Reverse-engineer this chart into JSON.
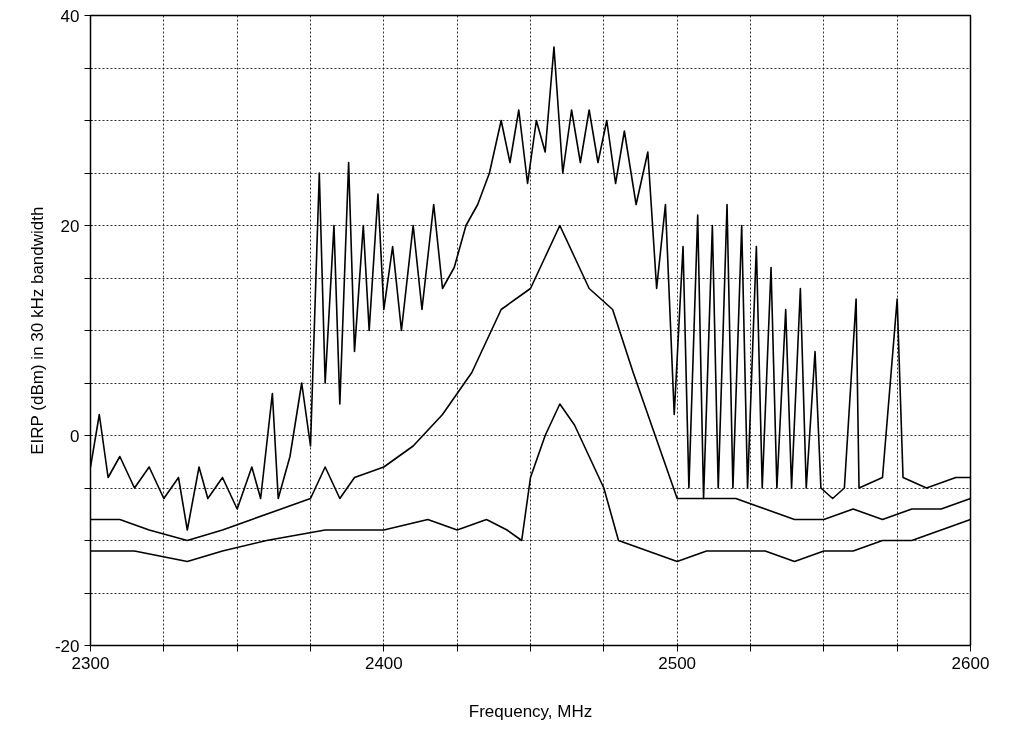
{
  "chart_data": {
    "type": "line",
    "xlabel": "Frequency, MHz",
    "ylabel": "EIRP (dBm) in 30 kHz bandwidth",
    "xlim": [
      2300,
      2600
    ],
    "ylim": [
      -20,
      40
    ],
    "xticks": [
      2300,
      {
        "value": 2325,
        "label": null
      },
      {
        "value": 2350,
        "label": null
      },
      {
        "value": 2375,
        "label": null
      },
      2400,
      {
        "value": 2425,
        "label": null
      },
      {
        "value": 2450,
        "label": null
      },
      {
        "value": 2475,
        "label": null
      },
      2500,
      {
        "value": 2525,
        "label": null
      },
      {
        "value": 2550,
        "label": null
      },
      {
        "value": 2575,
        "label": null
      },
      2600
    ],
    "yticks": [
      -20,
      {
        "value": -15,
        "label": null
      },
      {
        "value": -10,
        "label": null
      },
      {
        "value": -5,
        "label": null
      },
      0,
      {
        "value": 5,
        "label": null
      },
      {
        "value": 10,
        "label": null
      },
      {
        "value": 15,
        "label": null
      },
      20,
      {
        "value": 25,
        "label": null
      },
      {
        "value": 30,
        "label": null
      },
      {
        "value": 35,
        "label": null
      },
      40
    ],
    "grid": true,
    "marker": "none",
    "line_style": "solid",
    "series": [
      {
        "color": "#000000",
        "x": [
          2300,
          2303,
          2306,
          2310,
          2315,
          2320,
          2325,
          2330,
          2333,
          2337,
          2340,
          2345,
          2350,
          2355,
          2358,
          2362,
          2364,
          2368,
          2372,
          2375,
          2378,
          2380,
          2383,
          2385,
          2388,
          2390,
          2393,
          2395,
          2398,
          2400,
          2403,
          2406,
          2410,
          2413,
          2417,
          2420,
          2424,
          2428,
          2432,
          2436,
          2440,
          2443,
          2446,
          2449,
          2452,
          2455,
          2458,
          2461,
          2464,
          2467,
          2470,
          2473,
          2476,
          2479,
          2482,
          2486,
          2490,
          2493,
          2496,
          2499,
          2502,
          2504,
          2507,
          2509,
          2512,
          2514,
          2517,
          2519,
          2522,
          2524,
          2527,
          2529,
          2532,
          2534,
          2537,
          2539,
          2542,
          2544,
          2547,
          2549,
          2553,
          2557,
          2561,
          2562,
          2570,
          2575,
          2577,
          2585,
          2595,
          2600
        ],
        "values": [
          -3,
          2,
          -4,
          -2,
          -5,
          -3,
          -6,
          -4,
          -9,
          -3,
          -6,
          -4,
          -7,
          -3,
          -6,
          4,
          -6,
          -2,
          5,
          -1,
          25,
          5,
          20,
          3,
          26,
          8,
          20,
          10,
          23,
          12,
          18,
          10,
          20,
          12,
          22,
          14,
          16,
          20,
          22,
          25,
          30,
          26,
          31,
          24,
          30,
          27,
          37,
          25,
          31,
          26,
          31,
          26,
          30,
          24,
          29,
          22,
          27,
          14,
          22,
          2,
          18,
          -5,
          21,
          -6,
          20,
          -5,
          22,
          -5,
          20,
          -5,
          18,
          -5,
          16,
          -5,
          12,
          -5,
          14,
          -5,
          8,
          -5,
          -6,
          -5,
          13,
          -5,
          -4,
          13,
          -4,
          -5,
          -4,
          -4
        ]
      },
      {
        "color": "#000000",
        "x": [
          2300,
          2310,
          2320,
          2333,
          2345,
          2355,
          2365,
          2375,
          2380,
          2385,
          2390,
          2400,
          2410,
          2420,
          2430,
          2440,
          2450,
          2455,
          2460,
          2465,
          2470,
          2478,
          2485,
          2490,
          2495,
          2500,
          2510,
          2520,
          2530,
          2540,
          2550,
          2560,
          2570,
          2580,
          2590,
          2600
        ],
        "values": [
          -8,
          -8,
          -9,
          -10,
          -9,
          -8,
          -7,
          -6,
          -3,
          -6,
          -4,
          -3,
          -1,
          2,
          6,
          12,
          14,
          17,
          20,
          17,
          14,
          12,
          6,
          2,
          -2,
          -6,
          -6,
          -6,
          -7,
          -8,
          -8,
          -7,
          -8,
          -7,
          -7,
          -6
        ]
      },
      {
        "color": "#000000",
        "x": [
          2300,
          2315,
          2333,
          2345,
          2360,
          2380,
          2400,
          2415,
          2425,
          2435,
          2442,
          2447,
          2450,
          2455,
          2460,
          2465,
          2470,
          2475,
          2480,
          2490,
          2500,
          2510,
          2520,
          2530,
          2540,
          2550,
          2560,
          2570,
          2580,
          2590,
          2600
        ],
        "values": [
          -11,
          -11,
          -12,
          -11,
          -10,
          -9,
          -9,
          -8,
          -9,
          -8,
          -9,
          -10,
          -4,
          0,
          3,
          1,
          -2,
          -5,
          -10,
          -11,
          -12,
          -11,
          -11,
          -11,
          -12,
          -11,
          -11,
          -10,
          -10,
          -9,
          -8
        ]
      }
    ]
  }
}
